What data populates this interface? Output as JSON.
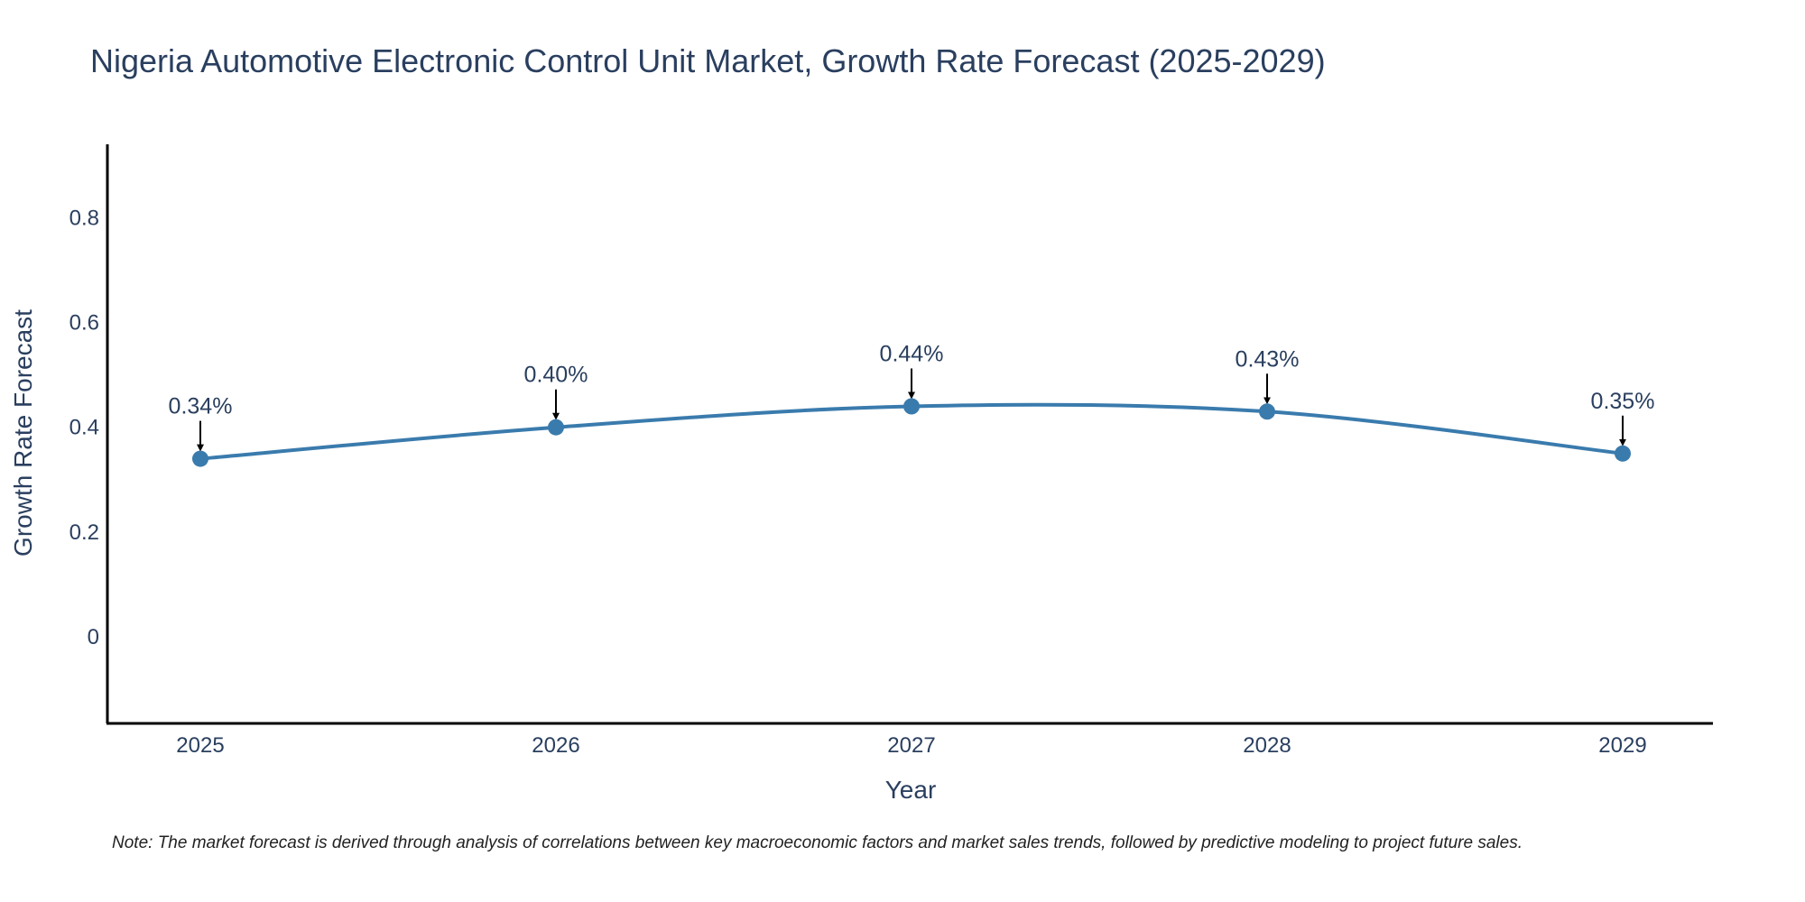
{
  "chart_data": {
    "type": "line",
    "title": "Nigeria Automotive Electronic Control Unit Market, Growth Rate Forecast (2025-2029)",
    "xlabel": "Year",
    "ylabel": "Growth Rate Forecast",
    "categories": [
      "2025",
      "2026",
      "2027",
      "2028",
      "2029"
    ],
    "values": [
      0.34,
      0.4,
      0.44,
      0.43,
      0.35
    ],
    "data_labels": [
      "0.34%",
      "0.40%",
      "0.44%",
      "0.43%",
      "0.35%"
    ],
    "yticks": [
      0,
      0.2,
      0.4,
      0.6,
      0.8
    ],
    "ytick_labels": [
      "0",
      "0.2",
      "0.4",
      "0.6",
      "0.8"
    ],
    "ylim": [
      -0.165,
      0.94
    ],
    "grid": false,
    "legend": "none",
    "line_color": "#3a7bad",
    "note": "Note: The market forecast is derived through analysis of correlations between key macroeconomic factors and market sales trends, followed by predictive modeling to project future sales."
  }
}
